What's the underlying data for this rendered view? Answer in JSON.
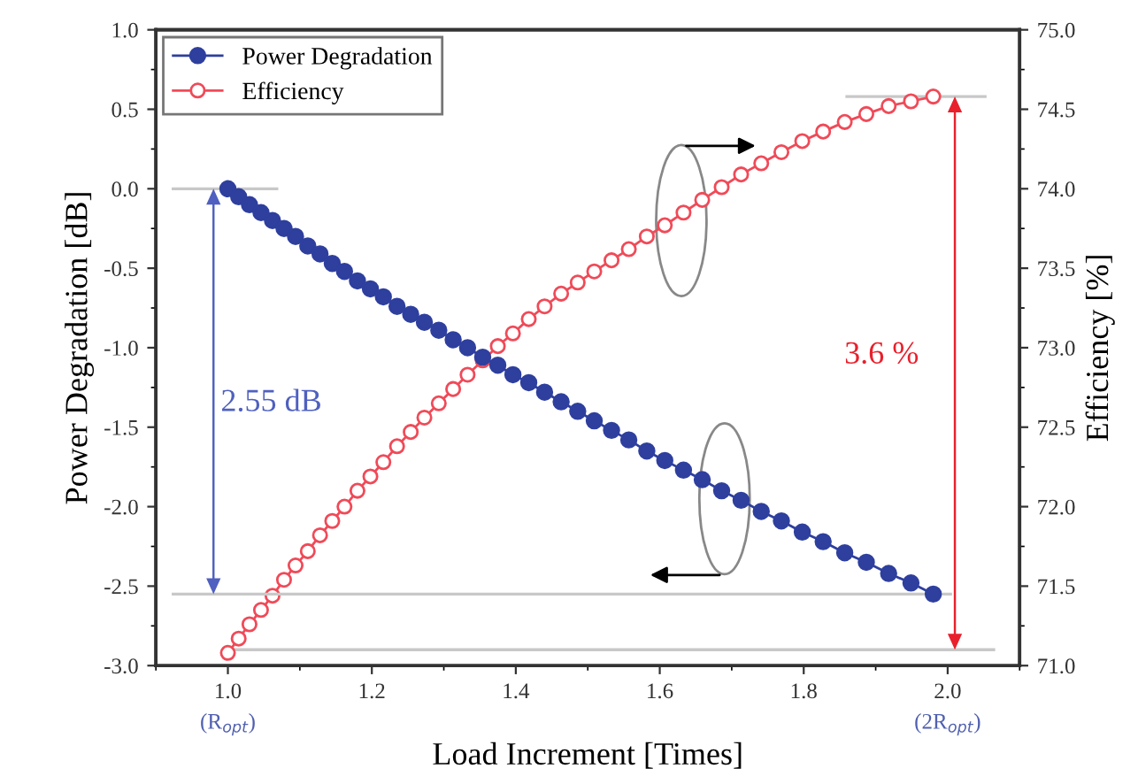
{
  "chart_data": {
    "type": "line",
    "xlabel": "Load Increment [Times]",
    "ylabel": "Power Degradation [dB]",
    "y2label": "Efficiency [%]",
    "x": [
      1.0,
      1.015,
      1.03,
      1.046,
      1.062,
      1.078,
      1.094,
      1.111,
      1.128,
      1.145,
      1.162,
      1.18,
      1.198,
      1.216,
      1.235,
      1.254,
      1.273,
      1.293,
      1.313,
      1.333,
      1.354,
      1.375,
      1.396,
      1.418,
      1.44,
      1.463,
      1.486,
      1.509,
      1.533,
      1.557,
      1.582,
      1.607,
      1.633,
      1.659,
      1.686,
      1.713,
      1.741,
      1.769,
      1.798,
      1.827,
      1.857,
      1.887,
      1.918,
      1.949,
      1.98
    ],
    "series": [
      {
        "name": "Power Degradation",
        "color": "#2e3f9e",
        "axis": "y",
        "values": [
          0,
          -0.05,
          -0.1,
          -0.15,
          -0.2,
          -0.25,
          -0.3,
          -0.36,
          -0.41,
          -0.47,
          -0.52,
          -0.58,
          -0.63,
          -0.68,
          -0.74,
          -0.79,
          -0.84,
          -0.89,
          -0.95,
          -1.0,
          -1.06,
          -1.11,
          -1.17,
          -1.22,
          -1.28,
          -1.34,
          -1.4,
          -1.46,
          -1.52,
          -1.58,
          -1.65,
          -1.71,
          -1.77,
          -1.83,
          -1.9,
          -1.96,
          -2.03,
          -2.09,
          -2.16,
          -2.22,
          -2.29,
          -2.35,
          -2.42,
          -2.48,
          -2.55
        ]
      },
      {
        "name": "Efficiency",
        "color": "#f04a58",
        "axis": "y2",
        "values": [
          71.08,
          71.17,
          71.26,
          71.35,
          71.44,
          71.54,
          71.63,
          71.72,
          71.82,
          71.91,
          72.0,
          72.1,
          72.19,
          72.28,
          72.38,
          72.47,
          72.56,
          72.65,
          72.74,
          72.83,
          72.92,
          73.01,
          73.09,
          73.18,
          73.26,
          73.34,
          73.41,
          73.48,
          73.55,
          73.62,
          73.7,
          73.77,
          73.85,
          73.93,
          74.01,
          74.09,
          74.16,
          74.23,
          74.3,
          74.36,
          74.42,
          74.47,
          74.52,
          74.55,
          74.58
        ]
      }
    ],
    "xlim": [
      0.9,
      2.1
    ],
    "xticks": [
      {
        "value": 1,
        "label": "1.0"
      },
      1.2,
      1.4,
      1.6,
      1.8,
      {
        "value": 2,
        "label": "2.0"
      }
    ],
    "ylim": [
      -3.0,
      1.0
    ],
    "yticks": [
      {
        "value": -3,
        "label": "-3.0"
      },
      -2.5,
      {
        "value": -2,
        "label": "-2.0"
      },
      -1.5,
      {
        "value": -1,
        "label": "-1.0"
      },
      -0.5,
      {
        "value": 0,
        "label": "0.0"
      },
      0.5,
      {
        "value": 1,
        "label": "1.0"
      }
    ],
    "y2lim": [
      71.0,
      75.0
    ],
    "y2ticks": [
      {
        "value": 71,
        "label": "71.0"
      },
      71.5,
      {
        "value": 72,
        "label": "72.0"
      },
      72.5,
      {
        "value": 73,
        "label": "73.0"
      },
      73.5,
      {
        "value": 74,
        "label": "74.0"
      },
      74.5,
      {
        "value": 75,
        "label": "75.0"
      }
    ],
    "ref_lines": [
      {
        "axis": "y",
        "value": 0,
        "color": "#c8c8c8"
      },
      {
        "axis": "y",
        "value": -2.55,
        "color": "#c8c8c8"
      },
      {
        "axis": "y2",
        "value": 71.1,
        "color": "#c8c8c8"
      },
      {
        "axis": "y2",
        "value": 74.58,
        "color": "#c8c8c8"
      }
    ],
    "annotations": [
      "2.55 dB",
      "3.6 %",
      "(R$_{opt}$)",
      "(2R$_{opt}$)"
    ],
    "marker": "circle",
    "line_style": "solid",
    "legend": "top left",
    "grid": false
  }
}
